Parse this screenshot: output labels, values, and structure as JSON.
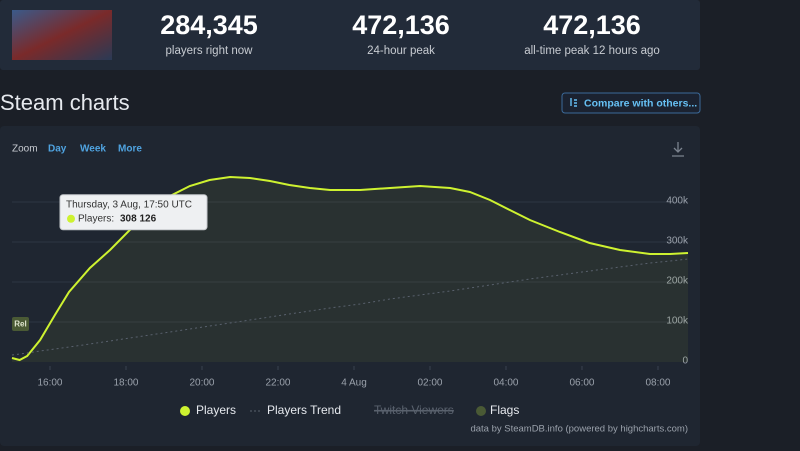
{
  "header": {
    "stats": [
      {
        "value": "284,345",
        "caption": "players right now"
      },
      {
        "value": "472,136",
        "caption": "24-hour peak"
      },
      {
        "value": "472,136",
        "caption": "all-time peak 12 hours ago"
      }
    ]
  },
  "section_title": "Steam charts",
  "compare_button": "Compare with others...",
  "zoom": {
    "label": "Zoom",
    "options": [
      "Day",
      "Week",
      "More"
    ]
  },
  "chart_data": {
    "type": "line",
    "x": [
      15.0,
      15.2,
      15.4,
      15.74,
      16.13,
      16.5,
      17.05,
      17.58,
      18.1,
      18.63,
      19.16,
      19.68,
      20.2,
      20.74,
      21.26,
      21.79,
      22.3,
      22.84,
      23.37,
      24.16,
      24.95,
      25.74,
      26.53,
      27.05,
      27.58,
      28.1,
      28.63,
      29.42,
      30.2,
      31.0,
      31.79,
      32.32,
      32.79
    ],
    "series": [
      {
        "name": "Players",
        "color": "#cef230",
        "values": [
          10000,
          5000,
          15000,
          55000,
          117500,
          175000,
          235000,
          280000,
          330000,
          375000,
          415000,
          440000,
          455000,
          462500,
          460000,
          452500,
          442500,
          435000,
          430000,
          430000,
          435000,
          440000,
          435000,
          425000,
          405000,
          380000,
          355000,
          325000,
          297500,
          280000,
          270000,
          270000,
          272500
        ]
      },
      {
        "name": "Players Trend",
        "color": "#59616d",
        "dashed": true,
        "values": [
          17500,
          20000,
          22500,
          27500,
          32500,
          37500,
          45000,
          52500,
          60000,
          67500,
          75000,
          82500,
          90000,
          97500,
          105000,
          112500,
          120000,
          127500,
          135000,
          145000,
          157500,
          167500,
          177500,
          185000,
          192500,
          200000,
          207500,
          217500,
          227500,
          237500,
          247500,
          252500,
          257500
        ]
      }
    ],
    "legend_extra": [
      {
        "name": "Twitch Viewers",
        "color": "#59616d",
        "hidden": true
      },
      {
        "name": "Flags",
        "color": "#4a5a35",
        "hidden": false
      }
    ],
    "xlim": [
      15,
      32.79
    ],
    "xticks": [
      {
        "value": 16,
        "label": "16:00"
      },
      {
        "value": 18,
        "label": "18:00"
      },
      {
        "value": 20,
        "label": "20:00"
      },
      {
        "value": 22,
        "label": "22:00"
      },
      {
        "value": 24,
        "label": "4 Aug"
      },
      {
        "value": 26,
        "label": "02:00"
      },
      {
        "value": 28,
        "label": "04:00"
      },
      {
        "value": 30,
        "label": "06:00"
      },
      {
        "value": 32,
        "label": "08:00"
      }
    ],
    "ylim": [
      0,
      500000
    ],
    "yticks": [
      0,
      {
        "value": 100000,
        "label": "100k"
      },
      {
        "value": 200000,
        "label": "200k"
      },
      {
        "value": 300000,
        "label": "300k"
      },
      {
        "value": 400000,
        "label": "400k"
      }
    ],
    "grid": true,
    "flag": "Rel",
    "tooltip": {
      "title": "Thursday, 3 Aug, 17:50 UTC",
      "series_label": "Players:",
      "value": 308126,
      "label": "308 126"
    },
    "credit": "data by SteamDB.info (powered by highcharts.com)"
  }
}
